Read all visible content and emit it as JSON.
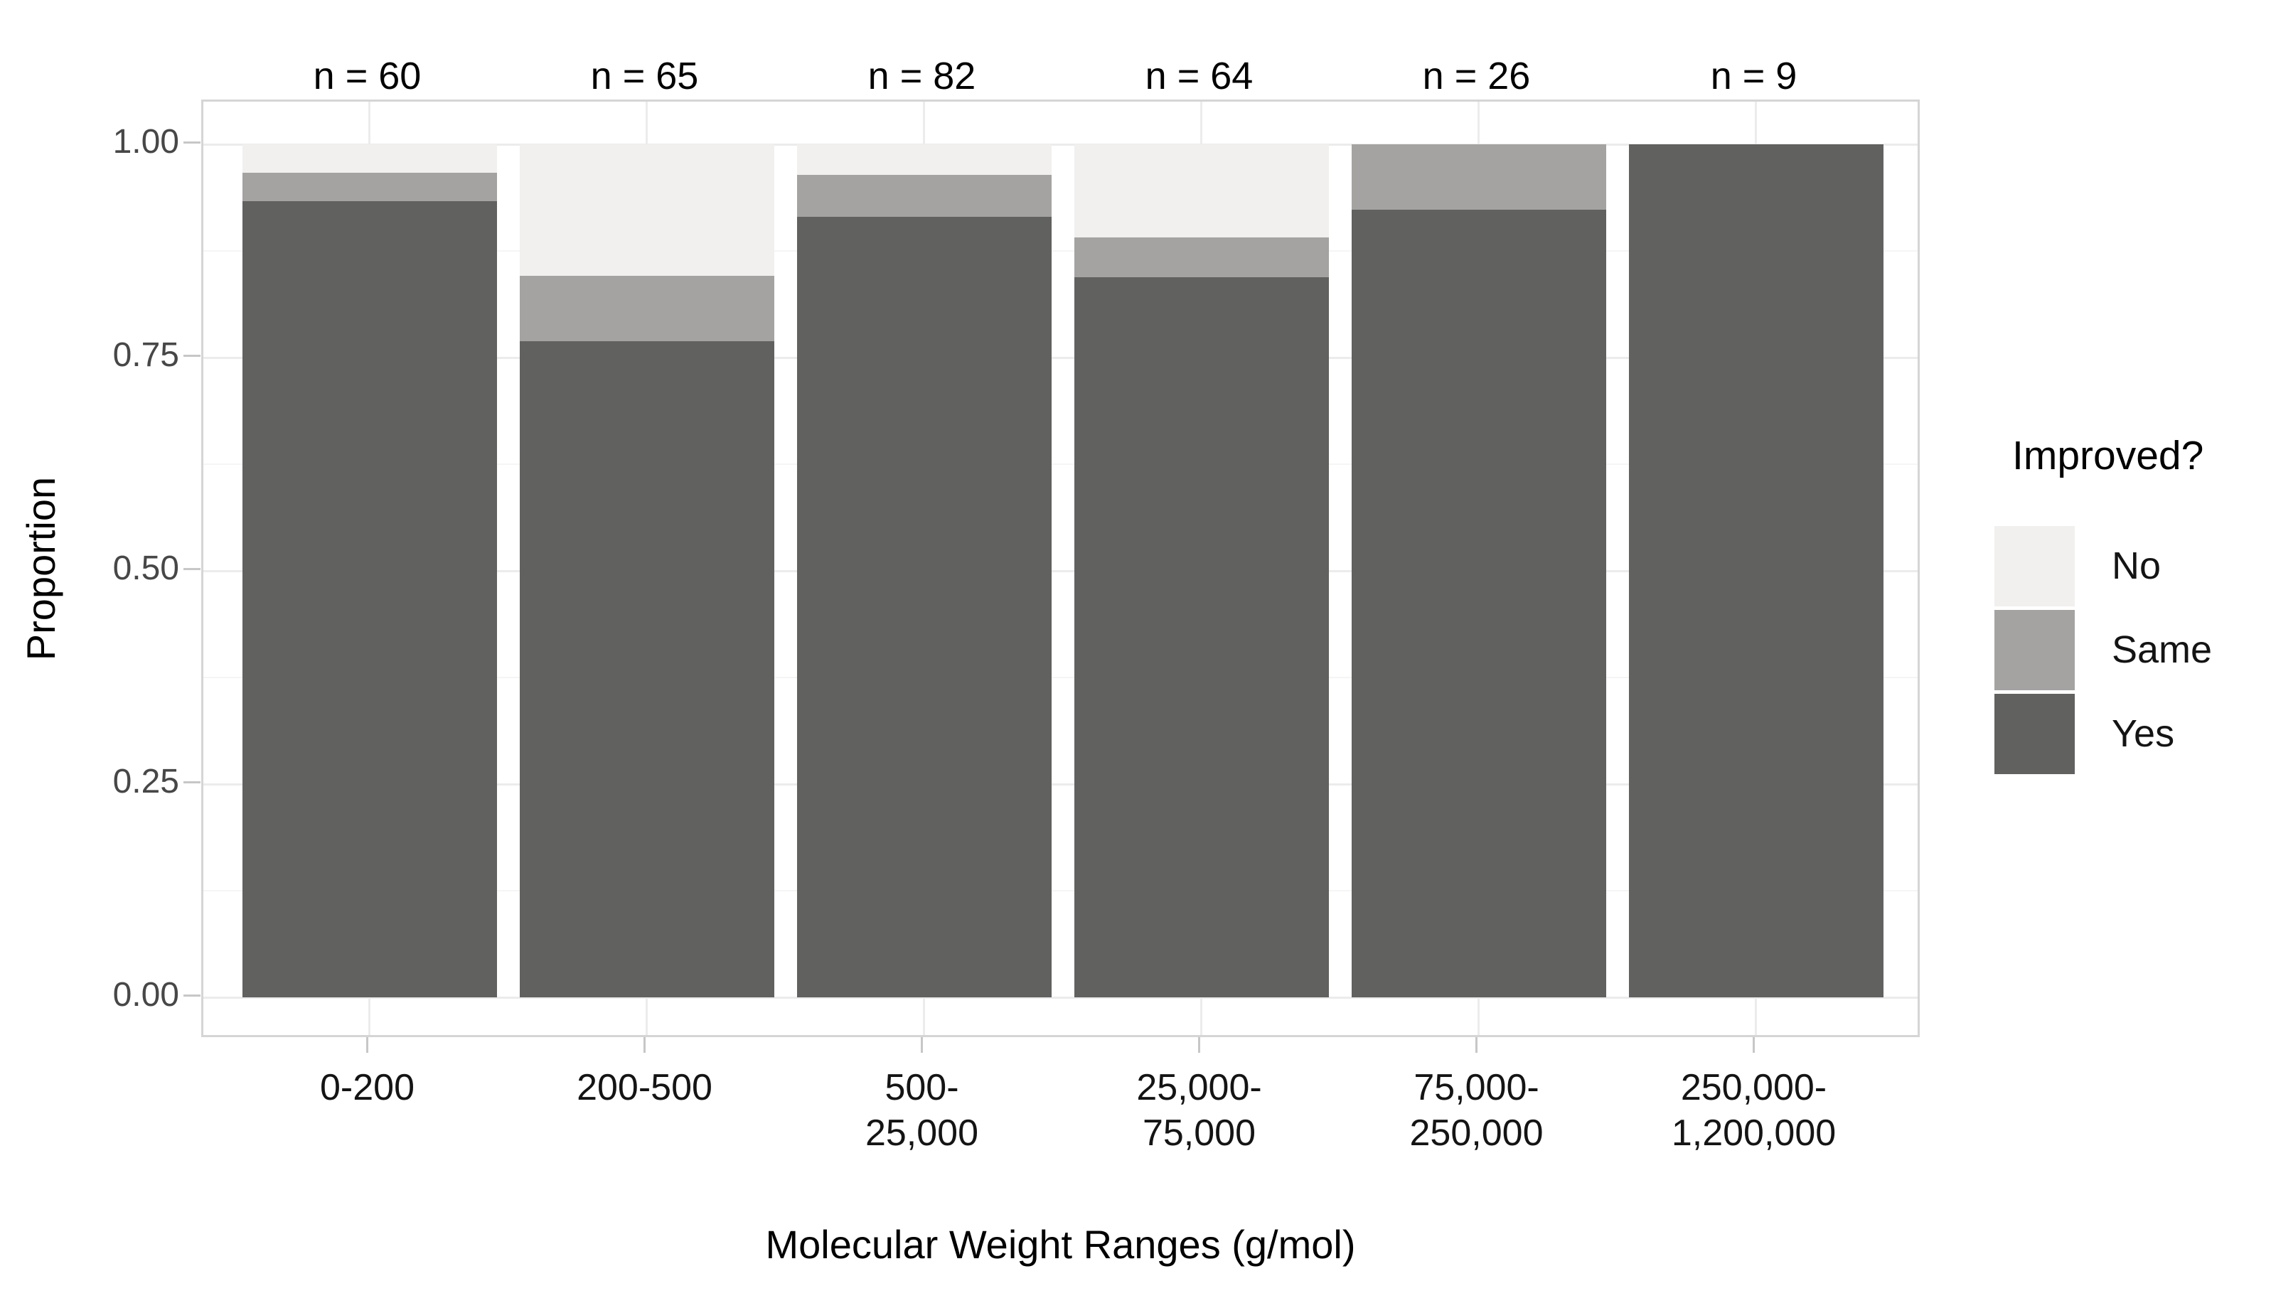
{
  "figure": {
    "background": "#ffffff"
  },
  "chart_data": {
    "type": "bar",
    "stacked": true,
    "normalized": true,
    "xlabel": "Molecular Weight Ranges (g/mol)",
    "ylabel": "Proportion",
    "categories": [
      "0-200",
      "200-500",
      "500-\n25,000",
      "25,000-\n75,000",
      "75,000-\n250,000",
      "250,000-\n1,200,000"
    ],
    "bar_counts": [
      "n = 60",
      "n = 65",
      "n = 82",
      "n = 64",
      "n = 26",
      "n = 9"
    ],
    "n_values": [
      60,
      65,
      82,
      64,
      26,
      9
    ],
    "series": [
      {
        "name": "Yes",
        "color": "#616160",
        "values": [
          0.933,
          0.769,
          0.915,
          0.844,
          0.923,
          1.0
        ]
      },
      {
        "name": "Same",
        "color": "#a4a3a1",
        "values": [
          0.034,
          0.077,
          0.049,
          0.047,
          0.077,
          0.0
        ]
      },
      {
        "name": "No",
        "color": "#f1f0ee",
        "values": [
          0.033,
          0.154,
          0.036,
          0.109,
          0.0,
          0.0
        ]
      }
    ],
    "stack_order_bottom_to_top": [
      "Yes",
      "Same",
      "No"
    ],
    "yticks": [
      "0.00",
      "0.25",
      "0.50",
      "0.75",
      "1.00"
    ],
    "ytick_values": [
      0,
      0.25,
      0.5,
      0.75,
      1.0
    ],
    "ylim": [
      0,
      1
    ],
    "grid": "major and minor horizontal lines, vertical line at each bar center",
    "legend": {
      "title": "Improved?",
      "position": "right",
      "entries": [
        {
          "label": "No",
          "color": "#f1f0ee"
        },
        {
          "label": "Same",
          "color": "#a4a3a1"
        },
        {
          "label": "Yes",
          "color": "#616160"
        }
      ]
    },
    "colors": {
      "panel_border": "#d5d5d5",
      "grid_major": "#ececec",
      "grid_minor": "#f5f5f4",
      "tick_mark": "#c7c7c7",
      "ytick_text": "#474747",
      "xtick_text": "#141414"
    }
  }
}
